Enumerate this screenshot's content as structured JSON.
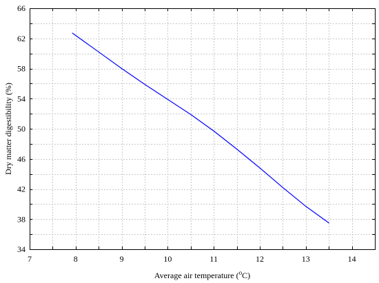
{
  "chart_data": {
    "type": "line",
    "xlabel": "Average air temperature (",
    "xlabel_sup": "o",
    "xlabel_suffix": "C)",
    "ylabel": "Dry matter digestibility (%)",
    "xlim": [
      7,
      14.5
    ],
    "ylim": [
      34,
      66
    ],
    "xticks": [
      7,
      8,
      9,
      10,
      11,
      12,
      13,
      14
    ],
    "yticks": [
      34,
      38,
      42,
      46,
      50,
      54,
      58,
      62,
      66
    ],
    "x_minor_step": 0.5,
    "y_minor_step": 2,
    "grid": true,
    "series": [
      {
        "color": "#0000ff",
        "x": [
          7.93,
          8.5,
          9.0,
          9.5,
          10.0,
          10.5,
          11.0,
          11.5,
          12.0,
          12.5,
          13.0,
          13.5
        ],
        "y": [
          62.7,
          60.2,
          58.0,
          55.9,
          53.9,
          51.9,
          49.7,
          47.3,
          44.8,
          42.2,
          39.7,
          37.5
        ]
      }
    ]
  }
}
